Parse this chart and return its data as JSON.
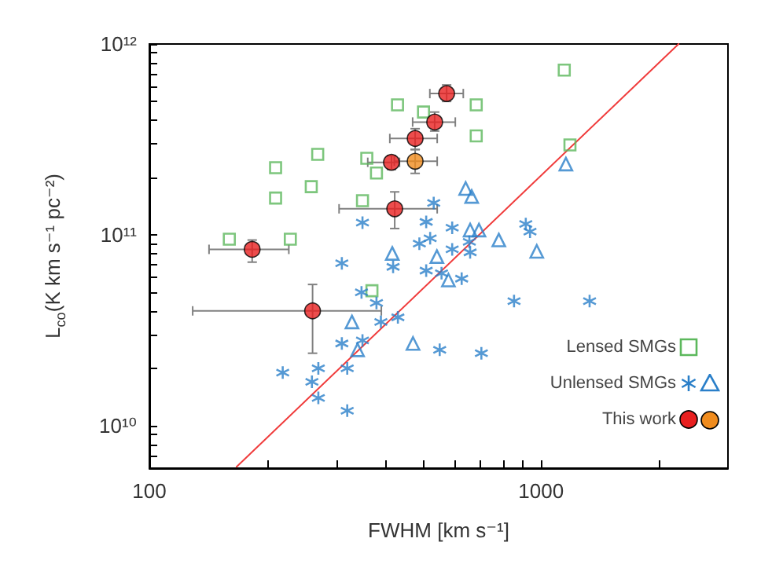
{
  "chart_data": {
    "type": "scatter",
    "xlabel": "FWHM [km s⁻¹]",
    "ylabel": "L$_{co}$(K km s⁻¹ pc⁻²)",
    "log": "xy",
    "xlim": [
      100,
      3000
    ],
    "ylim": [
      6000000000.0,
      1000000000000.0
    ],
    "xticks": [
      100,
      {
        "value": 200,
        "label": null
      },
      {
        "value": 300,
        "label": null
      },
      {
        "value": 400,
        "label": null
      },
      {
        "value": 500,
        "label": null
      },
      {
        "value": 600,
        "label": null
      },
      {
        "value": 700,
        "label": null
      },
      {
        "value": 800,
        "label": null
      },
      {
        "value": 900,
        "label": null
      },
      1000,
      {
        "value": 2000,
        "label": null
      }
    ],
    "yticks": [
      {
        "value": 7000000000.0,
        "label": null
      },
      {
        "value": 8000000000.0,
        "label": null
      },
      {
        "value": 9000000000.0,
        "label": null
      },
      {
        "value": 10000000000.0,
        "label": "10¹⁰"
      },
      {
        "value": 20000000000.0,
        "label": null
      },
      {
        "value": 30000000000.0,
        "label": null
      },
      {
        "value": 40000000000.0,
        "label": null
      },
      {
        "value": 50000000000.0,
        "label": null
      },
      {
        "value": 60000000000.0,
        "label": null
      },
      {
        "value": 70000000000.0,
        "label": null
      },
      {
        "value": 80000000000.0,
        "label": null
      },
      {
        "value": 90000000000.0,
        "label": null
      },
      {
        "value": 100000000000.0,
        "label": "10¹¹"
      },
      {
        "value": 200000000000.0,
        "label": null
      },
      {
        "value": 300000000000.0,
        "label": null
      },
      {
        "value": 400000000000.0,
        "label": null
      },
      {
        "value": 500000000000.0,
        "label": null
      },
      {
        "value": 600000000000.0,
        "label": null
      },
      {
        "value": 700000000000.0,
        "label": null
      },
      {
        "value": 800000000000.0,
        "label": null
      },
      {
        "value": 900000000000.0,
        "label": null
      },
      {
        "value": 1000000000000.0,
        "label": "10¹²"
      }
    ],
    "legend": "bottom right",
    "series": [
      {
        "type": "line",
        "color": "#f03c3c",
        "marker": "none",
        "line_style": "solid",
        "x": [
          167,
          2244
        ],
        "values": [
          6100000000.0,
          1000000000000.0
        ]
      },
      {
        "name": "Lensed SMGs",
        "type": "scatter",
        "marker": "square",
        "color": "#5cb85c",
        "x": [
          1146,
          430,
          501,
          683,
          683,
          1185,
          269,
          210,
          359,
          380,
          259,
          210,
          350,
          160,
          229,
          370
        ],
        "values": [
          730000000000.0,
          480000000000.0,
          440000000000.0,
          480000000000.0,
          330000000000.0,
          296000000000.0,
          264000000000.0,
          225000000000.0,
          252000000000.0,
          211000000000.0,
          179000000000.0,
          156000000000.0,
          151000000000.0,
          95000000000.0,
          95000000000.0,
          51000000000.0
        ]
      },
      {
        "name": "Unlensed SMGs",
        "type": "scatter",
        "marker": "cross",
        "color": "#2a7fc9",
        "x": [
          532,
          350,
          509,
          593,
          914,
          937,
          521,
          489,
          656,
          593,
          659,
          310,
          419,
          509,
          557,
          627,
          348,
          380,
          431,
          390,
          853,
          1330,
          310,
          350,
          551,
          704,
          219,
          270,
          320,
          260,
          270,
          320
        ],
        "values": [
          147000000000.0,
          116000000000.0,
          117000000000.0,
          109000000000.0,
          114000000000.0,
          104000000000.0,
          96000000000.0,
          90000000000.0,
          92000000000.0,
          84000000000.0,
          81000000000.0,
          71000000000.0,
          68000000000.0,
          65000000000.0,
          63000000000.0,
          59000000000.0,
          50000000000.0,
          44000000000.0,
          37000000000.0,
          35000000000.0,
          45000000000.0,
          45000000000.0,
          27000000000.0,
          28000000000.0,
          25000000000.0,
          24000000000.0,
          19000000000.0,
          20000000000.0,
          20000000000.0,
          17000000000.0,
          14000000000.0,
          12000000000.0
        ]
      },
      {
        "type": "scatter",
        "marker": "triangle",
        "color": "#2a7fc9",
        "x": [
          1157,
          642,
          665,
          659,
          694,
          780,
          975,
          417,
          542,
          580,
          329,
          340,
          471
        ],
        "values": [
          235000000000.0,
          175000000000.0,
          159000000000.0,
          106000000000.0,
          106000000000.0,
          94000000000.0,
          82000000000.0,
          80000000000.0,
          77000000000.0,
          58000000000.0,
          35000000000.0,
          25000000000.0,
          27000000000.0
        ]
      },
      {
        "name": "This work",
        "type": "scatter",
        "marker": "circle",
        "color": "#e82020",
        "x": [
          574,
          535,
          477,
          415,
          423,
          183,
          261
        ],
        "values": [
          550000000000.0,
          390000000000.0,
          320000000000.0,
          240000000000.0,
          137000000000.0,
          84000000000.0,
          40000000000.0
        ],
        "xerrors": [
          [
            520,
            633
          ],
          [
            470,
            604
          ],
          [
            411,
            543
          ],
          [
            361,
            435
          ],
          [
            305,
            543
          ],
          [
            142,
            227
          ],
          [
            129,
            391
          ]
        ],
        "errors": [
          [
            500000000000.0,
            610000000000.0
          ],
          [
            350000000000.0,
            440000000000.0
          ],
          [
            280000000000.0,
            360000000000.0
          ],
          [
            220000000000.0,
            260000000000.0
          ],
          [
            108000000000.0,
            168000000000.0
          ],
          [
            72000000000.0,
            94000000000.0
          ],
          [
            24000000000.0,
            55000000000.0
          ]
        ]
      },
      {
        "type": "scatter",
        "marker": "circle",
        "color": "#f08c1e",
        "x": [
          477
        ],
        "values": [
          243000000000.0
        ],
        "xerrors": [
          [
            422,
            543
          ]
        ],
        "errors": [
          [
            210000000000.0,
            280000000000.0
          ]
        ]
      }
    ]
  }
}
